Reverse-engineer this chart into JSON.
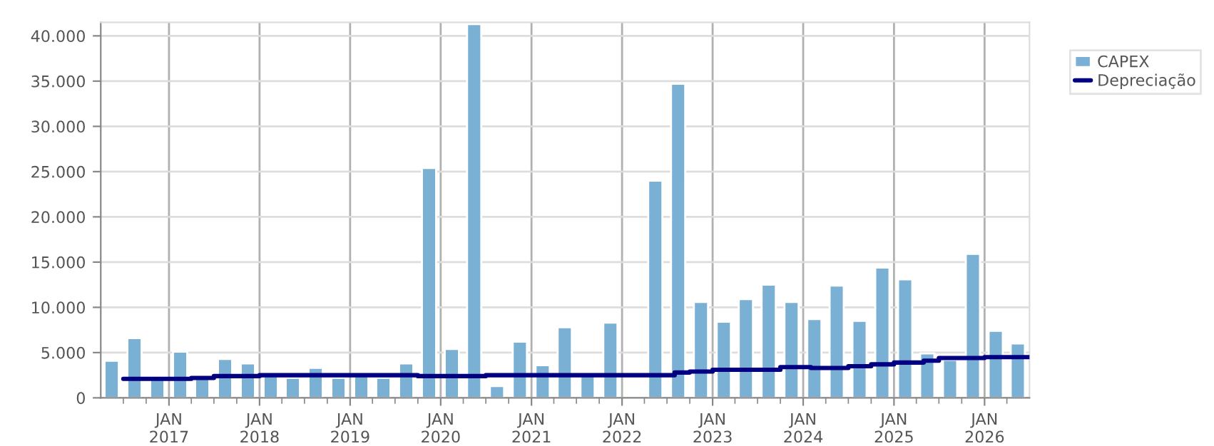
{
  "chart_data": {
    "type": "bar",
    "x": [
      "2016-05-15",
      "2016-08-15",
      "2016-11-15",
      "2017-02-15",
      "2017-05-15",
      "2017-08-15",
      "2017-11-15",
      "2018-02-15",
      "2018-05-15",
      "2018-08-15",
      "2018-11-15",
      "2019-02-15",
      "2019-05-15",
      "2019-08-15",
      "2019-11-15",
      "2020-02-15",
      "2020-05-15",
      "2020-08-15",
      "2020-11-15",
      "2021-02-15",
      "2021-05-15",
      "2021-08-15",
      "2021-11-15",
      "2022-02-15",
      "2022-05-15",
      "2022-08-15",
      "2022-11-15",
      "2023-02-15",
      "2023-05-15",
      "2023-08-15",
      "2023-11-15",
      "2024-02-15",
      "2024-05-15",
      "2024-08-15",
      "2024-11-15",
      "2025-02-15",
      "2025-05-15",
      "2025-08-15",
      "2025-11-15",
      "2026-02-15",
      "2026-05-15"
    ],
    "series": [
      {
        "name": "CAPEX",
        "color": "#7ab0d4",
        "values": [
          4100,
          6600,
          2100,
          5100,
          2200,
          4300,
          3800,
          2500,
          2200,
          3300,
          2200,
          2500,
          2200,
          3800,
          25400,
          5400,
          41300,
          1300,
          6200,
          3600,
          7800,
          2500,
          8300,
          null,
          24000,
          34700,
          10600,
          8400,
          10900,
          12500,
          10600,
          8700,
          12400,
          8500,
          14400,
          13100,
          4900,
          4200,
          15900,
          7400,
          6000
        ]
      },
      {
        "name": "Depreciação",
        "type": "step",
        "color": "#000080",
        "x": [
          "2016-07-01",
          "2017-04-01",
          "2017-07-01",
          "2018-01-01",
          "2019-10-01",
          "2020-07-01",
          "2022-08-01",
          "2022-10-01",
          "2023-01-01",
          "2023-10-01",
          "2024-02-01",
          "2024-07-01",
          "2024-10-01",
          "2025-01-01",
          "2025-05-01",
          "2025-07-01",
          "2026-01-01",
          "2026-07-01"
        ],
        "values": [
          2100,
          2200,
          2400,
          2500,
          2400,
          2500,
          2800,
          2900,
          3100,
          3400,
          3300,
          3500,
          3700,
          3900,
          4100,
          4400,
          4500,
          4500
        ]
      }
    ],
    "xlim": [
      "2016-04-01",
      "2026-07-01"
    ],
    "xticks": [
      {
        "value": "2016-07-01",
        "label": null
      },
      {
        "value": "2016-10-01",
        "label": null
      },
      {
        "value": "2017-01-01",
        "label": "JAN\n2017"
      },
      {
        "value": "2017-04-01",
        "label": null
      },
      {
        "value": "2017-07-01",
        "label": null
      },
      {
        "value": "2017-10-01",
        "label": null
      },
      {
        "value": "2018-01-01",
        "label": "JAN\n2018"
      },
      {
        "value": "2018-04-01",
        "label": null
      },
      {
        "value": "2018-07-01",
        "label": null
      },
      {
        "value": "2018-10-01",
        "label": null
      },
      {
        "value": "2019-01-01",
        "label": "JAN\n2019"
      },
      {
        "value": "2019-04-01",
        "label": null
      },
      {
        "value": "2019-07-01",
        "label": null
      },
      {
        "value": "2019-10-01",
        "label": null
      },
      {
        "value": "2020-01-01",
        "label": "JAN\n2020"
      },
      {
        "value": "2020-04-01",
        "label": null
      },
      {
        "value": "2020-07-01",
        "label": null
      },
      {
        "value": "2020-10-01",
        "label": null
      },
      {
        "value": "2021-01-01",
        "label": "JAN\n2021"
      },
      {
        "value": "2021-04-01",
        "label": null
      },
      {
        "value": "2021-07-01",
        "label": null
      },
      {
        "value": "2021-10-01",
        "label": null
      },
      {
        "value": "2022-01-01",
        "label": "JAN\n2022"
      },
      {
        "value": "2022-04-01",
        "label": null
      },
      {
        "value": "2022-07-01",
        "label": null
      },
      {
        "value": "2022-10-01",
        "label": null
      },
      {
        "value": "2023-01-01",
        "label": "JAN\n2023"
      },
      {
        "value": "2023-04-01",
        "label": null
      },
      {
        "value": "2023-07-01",
        "label": null
      },
      {
        "value": "2023-10-01",
        "label": null
      },
      {
        "value": "2024-01-01",
        "label": "JAN\n2024"
      },
      {
        "value": "2024-04-01",
        "label": null
      },
      {
        "value": "2024-07-01",
        "label": null
      },
      {
        "value": "2024-10-01",
        "label": null
      },
      {
        "value": "2025-01-01",
        "label": "JAN\n2025"
      },
      {
        "value": "2025-04-01",
        "label": null
      },
      {
        "value": "2025-07-01",
        "label": null
      },
      {
        "value": "2025-10-01",
        "label": null
      },
      {
        "value": "2026-01-01",
        "label": "JAN\n2026"
      },
      {
        "value": "2026-04-01",
        "label": null
      }
    ],
    "ylim": [
      0,
      41500
    ],
    "yticks": [
      {
        "value": 0,
        "label": "0"
      },
      {
        "value": 5000,
        "label": "5.000"
      },
      {
        "value": 10000,
        "label": "10.000"
      },
      {
        "value": 15000,
        "label": "15.000"
      },
      {
        "value": 20000,
        "label": "20.000"
      },
      {
        "value": 25000,
        "label": "25.000"
      },
      {
        "value": 30000,
        "label": "30.000"
      },
      {
        "value": 35000,
        "label": "35.000"
      },
      {
        "value": 40000,
        "label": "40.000"
      }
    ],
    "grid": true,
    "legend": "top right"
  }
}
